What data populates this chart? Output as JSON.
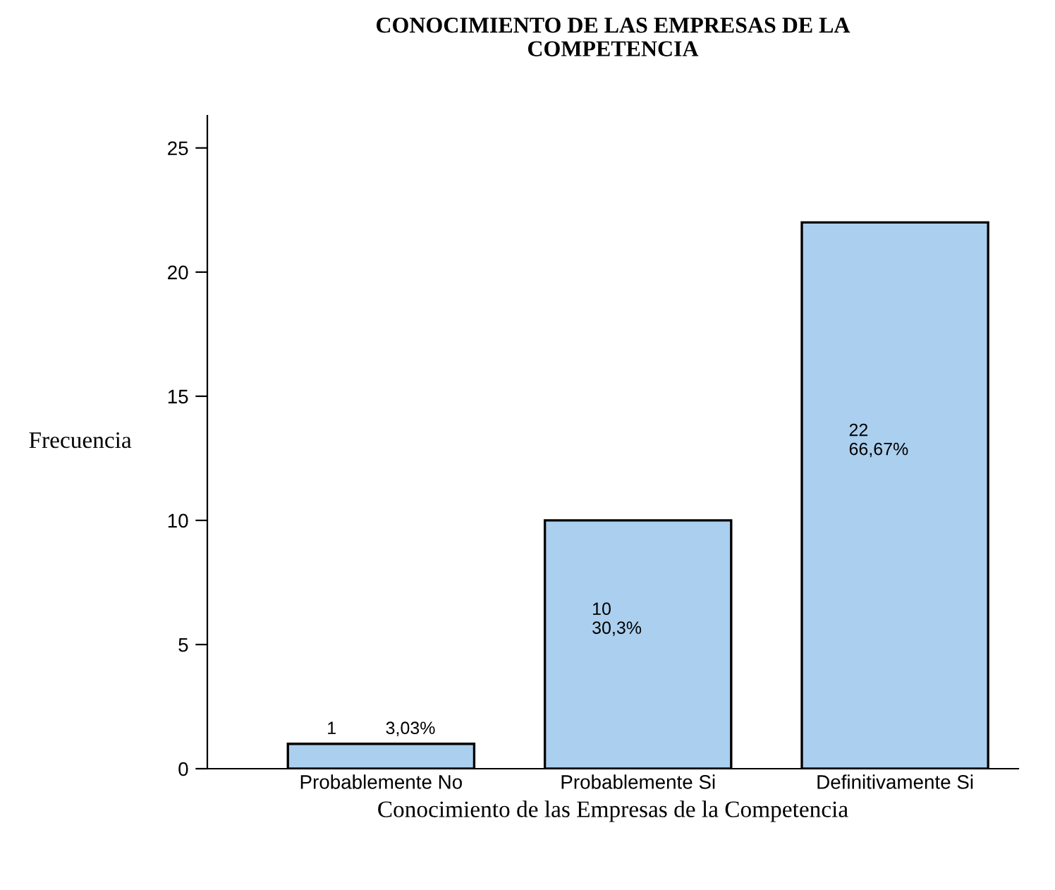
{
  "chart_data": {
    "type": "bar",
    "title": "CONOCIMIENTO DE LAS EMPRESAS DE LA\nCOMPETENCIA",
    "xlabel": "Conocimiento de las Empresas de la Competencia",
    "ylabel": "Frecuencia",
    "categories": [
      "Probablemente No",
      "Probablemente Si",
      "Definitivamente Si"
    ],
    "values": [
      1,
      10,
      22
    ],
    "value_labels": [
      "1          3,03%",
      "10\n30,3%",
      "22\n66,67%"
    ],
    "color": "#abcfee",
    "ylim": [
      0,
      26.3
    ],
    "yticks": [
      0,
      5,
      10,
      15,
      20,
      25
    ],
    "grid": false
  }
}
